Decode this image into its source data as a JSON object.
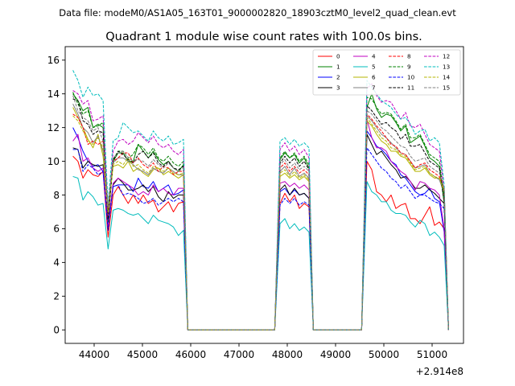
{
  "chart_data": {
    "type": "line",
    "suptitle": "Data file: modeM0/AS1A05_163T01_9000002820_18903cztM0_level2_quad_clean.evt",
    "title": "Quadrant 1 module wise count rates with 100.0s bins.",
    "xlabel": "",
    "ylabel": "",
    "x_offset_label": "+2.914e8",
    "xlim": [
      43400,
      51650
    ],
    "ylim": [
      -0.8,
      16.8
    ],
    "xticks": [
      44000,
      45000,
      46000,
      47000,
      48000,
      49000,
      50000,
      51000
    ],
    "xtick_labels": [
      "44000",
      "45000",
      "46000",
      "47000",
      "48000",
      "49000",
      "50000",
      "51000"
    ],
    "yticks": [
      0,
      2,
      4,
      6,
      8,
      10,
      12,
      14,
      16
    ],
    "ytick_labels": [
      "0",
      "2",
      "4",
      "6",
      "8",
      "10",
      "12",
      "14",
      "16"
    ],
    "grid": false,
    "legend_position": "top-right",
    "legend_columns": 4,
    "orbit_segments": [
      [
        43560,
        45850
      ],
      [
        47850,
        48450
      ],
      [
        49650,
        51250
      ]
    ],
    "bin_width": 100,
    "series": [
      {
        "name": "0",
        "color": "#ff0000",
        "dash": "solid",
        "seg1": [
          10.3,
          10.0,
          9.0,
          9.5,
          9.2,
          9.1,
          9.4,
          5.5,
          8.0,
          8.5,
          8.0,
          7.5,
          8.0,
          7.5,
          8.0,
          7.5,
          7.7,
          7.0,
          7.3,
          7.6,
          7.0,
          7.5,
          7.6
        ],
        "seg2": [
          7.5,
          8.1,
          7.6,
          8.0,
          7.2,
          7.5,
          7.3
        ],
        "seg3": [
          10.0,
          9.5,
          8.2,
          8.0,
          7.6,
          8.0,
          7.2,
          7.4,
          7.5,
          6.6,
          6.6,
          6.3,
          6.8,
          7.3,
          6.2,
          6.4,
          6.0
        ]
      },
      {
        "name": "1",
        "color": "#008000",
        "dash": "solid",
        "seg1": [
          14.0,
          13.6,
          13.0,
          13.2,
          12.0,
          12.2,
          12.0,
          6.5,
          10.0,
          10.5,
          10.5,
          10.0,
          10.0,
          11.0,
          10.6,
          10.2,
          10.6,
          10.1,
          9.8,
          10.0,
          9.6,
          9.4,
          9.8
        ],
        "seg2": [
          10.1,
          10.5,
          10.2,
          10.4,
          9.9,
          10.2,
          9.6
        ],
        "seg3": [
          13.2,
          14.0,
          13.1,
          12.6,
          12.8,
          12.7,
          12.3,
          11.8,
          12.1,
          11.1,
          11.3,
          11.5,
          10.9,
          10.2,
          10.0,
          9.7,
          7.5
        ]
      },
      {
        "name": "2",
        "color": "#0000ff",
        "dash": "solid",
        "seg1": [
          12.0,
          11.4,
          10.6,
          10.0,
          9.7,
          9.8,
          9.4,
          6.2,
          8.5,
          8.6,
          8.6,
          8.6,
          8.2,
          9.0,
          8.5,
          8.4,
          8.8,
          8.2,
          8.4,
          8.6,
          8.0,
          8.1,
          8.3
        ],
        "seg2": [
          8.2,
          8.4,
          8.0,
          8.3,
          8.0,
          8.1,
          7.8
        ],
        "seg3": [
          11.8,
          11.4,
          10.9,
          10.7,
          10.4,
          10.0,
          9.8,
          9.2,
          9.0,
          8.6,
          8.2,
          8.0,
          8.1,
          8.4,
          7.8,
          7.6,
          5.8
        ]
      },
      {
        "name": "3",
        "color": "#000000",
        "dash": "solid",
        "seg1": [
          10.8,
          10.7,
          9.6,
          10.0,
          9.8,
          9.7,
          9.8,
          6.0,
          8.6,
          9.0,
          8.7,
          8.3,
          8.3,
          8.4,
          8.6,
          8.2,
          8.5,
          7.9,
          7.6,
          8.2,
          7.8,
          8.0,
          8.0
        ],
        "seg2": [
          8.3,
          8.6,
          8.0,
          8.4,
          8.0,
          8.1,
          7.8
        ],
        "seg3": [
          11.6,
          11.0,
          10.4,
          10.6,
          10.2,
          9.8,
          9.5,
          9.0,
          9.1,
          8.8,
          8.4,
          8.4,
          8.6,
          8.3,
          8.1,
          7.8,
          7.5
        ]
      },
      {
        "name": "4",
        "color": "#c000c0",
        "dash": "solid",
        "seg1": [
          11.2,
          11.6,
          10.0,
          10.2,
          9.6,
          9.4,
          9.6,
          6.1,
          8.7,
          9.0,
          8.8,
          8.6,
          8.4,
          8.0,
          8.2,
          8.0,
          8.6,
          8.2,
          8.4,
          8.1,
          8.0,
          8.4,
          8.4
        ],
        "seg2": [
          8.7,
          8.8,
          8.5,
          8.7,
          8.4,
          8.6,
          8.3
        ],
        "seg3": [
          12.5,
          11.4,
          10.8,
          10.8,
          10.6,
          10.0,
          9.7,
          9.4,
          9.2,
          8.8,
          8.3,
          8.8,
          8.7,
          8.4,
          8.3,
          8.0,
          6.0
        ]
      },
      {
        "name": "5",
        "color": "#00bcbc",
        "dash": "solid",
        "seg1": [
          9.1,
          9.0,
          7.7,
          8.2,
          7.9,
          7.4,
          7.5,
          4.8,
          7.1,
          7.2,
          7.1,
          6.9,
          6.8,
          6.9,
          6.6,
          6.3,
          6.8,
          6.5,
          6.4,
          6.3,
          6.1,
          5.6,
          5.9
        ],
        "seg2": [
          6.3,
          6.6,
          6.0,
          6.3,
          5.9,
          6.1,
          5.8
        ],
        "seg3": [
          8.8,
          8.2,
          8.0,
          7.6,
          7.6,
          7.1,
          6.9,
          6.9,
          6.8,
          6.4,
          6.1,
          6.5,
          6.3,
          5.6,
          5.8,
          5.5,
          5.0
        ]
      },
      {
        "name": "6",
        "color": "#b5b500",
        "dash": "solid",
        "seg1": [
          13.2,
          12.6,
          12.0,
          11.3,
          10.8,
          11.6,
          10.3,
          7.0,
          9.7,
          9.8,
          9.6,
          10.0,
          9.4,
          9.6,
          9.3,
          9.1,
          9.5,
          9.6,
          9.2,
          9.4,
          9.2,
          9.0,
          9.2
        ],
        "seg2": [
          9.1,
          9.3,
          9.0,
          9.2,
          8.9,
          9.1,
          8.8
        ],
        "seg3": [
          12.4,
          12.1,
          11.6,
          11.2,
          11.0,
          10.6,
          10.6,
          10.3,
          10.2,
          9.8,
          9.4,
          9.4,
          9.6,
          9.2,
          9.0,
          9.0,
          8.3
        ]
      },
      {
        "name": "7",
        "color": "#808080",
        "dash": "solid",
        "seg1": [
          13.4,
          12.8,
          12.0,
          11.7,
          11.1,
          11.5,
          10.6,
          7.2,
          9.9,
          10.2,
          10.2,
          10.0,
          9.8,
          9.5,
          9.4,
          9.2,
          9.6,
          9.4,
          9.3,
          9.6,
          9.4,
          9.2,
          9.2
        ],
        "seg2": [
          9.4,
          9.7,
          9.2,
          9.6,
          9.1,
          9.3,
          9.0
        ],
        "seg3": [
          12.7,
          12.4,
          12.0,
          11.6,
          11.4,
          11.1,
          10.8,
          10.5,
          10.4,
          10.0,
          9.6,
          9.7,
          9.8,
          9.3,
          9.1,
          8.9,
          8.1
        ]
      },
      {
        "name": "8",
        "color": "#ff0000",
        "dash": "dashed",
        "seg1": [
          12.8,
          12.6,
          12.0,
          11.0,
          11.2,
          11.0,
          11.2,
          6.8,
          10.0,
          10.2,
          10.5,
          10.5,
          9.9,
          10.2,
          9.8,
          9.6,
          9.9,
          9.4,
          9.7,
          9.6,
          9.2,
          9.4,
          9.4
        ],
        "seg2": [
          9.6,
          9.9,
          9.4,
          9.7,
          9.3,
          9.5,
          9.2
        ],
        "seg3": [
          12.8,
          12.5,
          12.1,
          11.8,
          11.4,
          11.0,
          10.9,
          10.5,
          10.4,
          10.0,
          9.6,
          9.8,
          9.9,
          9.5,
          9.3,
          9.1,
          8.4
        ]
      },
      {
        "name": "9",
        "color": "#008000",
        "dash": "dashed",
        "seg1": [
          14.1,
          13.4,
          12.8,
          13.0,
          12.0,
          12.1,
          12.3,
          6.4,
          10.1,
          10.6,
          10.6,
          10.2,
          10.4,
          11.0,
          10.8,
          10.4,
          10.8,
          10.2,
          10.0,
          10.3,
          9.9,
          9.7,
          10.0
        ],
        "seg2": [
          10.2,
          10.6,
          10.2,
          10.5,
          10.0,
          10.3,
          9.8
        ],
        "seg3": [
          13.8,
          13.7,
          13.2,
          12.8,
          12.9,
          12.8,
          12.4,
          11.9,
          12.2,
          11.4,
          11.4,
          11.6,
          11.0,
          10.4,
          10.2,
          10.0,
          7.8
        ]
      },
      {
        "name": "10",
        "color": "#0000ff",
        "dash": "dashed",
        "seg1": [
          10.7,
          10.7,
          9.4,
          9.8,
          9.6,
          9.2,
          9.4,
          5.9,
          8.5,
          8.6,
          8.0,
          8.1,
          8.0,
          7.8,
          7.5,
          7.6,
          7.8,
          7.4,
          7.6,
          7.8,
          7.6,
          7.8,
          7.6
        ],
        "seg2": [
          7.4,
          7.8,
          7.5,
          7.8,
          7.4,
          7.6,
          7.4
        ],
        "seg3": [
          10.8,
          10.4,
          10.0,
          9.6,
          9.4,
          9.0,
          8.8,
          8.4,
          8.6,
          8.2,
          7.8,
          8.0,
          8.0,
          7.8,
          7.6,
          7.5,
          7.2
        ]
      },
      {
        "name": "11",
        "color": "#000000",
        "dash": "dashed",
        "seg1": [
          13.7,
          13.6,
          12.4,
          12.2,
          11.6,
          11.8,
          11.7,
          6.6,
          10.0,
          10.6,
          10.4,
          10.1,
          9.9,
          10.4,
          10.6,
          10.2,
          10.5,
          9.9,
          9.7,
          10.0,
          9.6,
          9.5,
          9.7
        ],
        "seg2": [
          9.9,
          10.3,
          9.9,
          10.2,
          9.7,
          10.0,
          9.5
        ],
        "seg3": [
          13.3,
          13.0,
          12.6,
          12.2,
          12.3,
          12.0,
          11.8,
          11.3,
          11.6,
          10.9,
          10.9,
          11.0,
          10.5,
          10.0,
          9.8,
          9.6,
          7.6
        ]
      },
      {
        "name": "12",
        "color": "#c000c0",
        "dash": "dashed",
        "seg1": [
          14.2,
          14.0,
          13.4,
          13.6,
          12.4,
          12.5,
          12.7,
          6.8,
          10.6,
          11.2,
          11.3,
          11.0,
          11.2,
          11.7,
          11.4,
          11.1,
          11.5,
          11.0,
          10.8,
          11.0,
          10.6,
          10.4,
          10.7
        ],
        "seg2": [
          10.7,
          11.1,
          10.6,
          10.9,
          10.4,
          10.7,
          10.2
        ],
        "seg3": [
          14.3,
          14.6,
          13.9,
          13.5,
          13.6,
          13.5,
          13.0,
          12.5,
          12.9,
          12.1,
          12.0,
          12.2,
          11.6,
          11.0,
          10.8,
          10.6,
          8.2
        ]
      },
      {
        "name": "13",
        "color": "#00bcbc",
        "dash": "dashed",
        "seg1": [
          15.4,
          14.8,
          13.8,
          14.4,
          13.9,
          14.0,
          13.6,
          7.4,
          11.2,
          11.4,
          12.3,
          12.0,
          11.7,
          11.8,
          11.5,
          11.2,
          11.8,
          11.4,
          11.2,
          11.5,
          11.0,
          11.1,
          11.3
        ],
        "seg2": [
          11.2,
          11.4,
          11.0,
          11.3,
          10.9,
          11.1,
          10.8
        ],
        "seg3": [
          14.8,
          14.4,
          14.0,
          13.6,
          13.4,
          13.2,
          12.8,
          12.5,
          12.6,
          12.2,
          11.6,
          11.8,
          11.9,
          11.2,
          11.4,
          11.1,
          8.6
        ]
      },
      {
        "name": "14",
        "color": "#b5b500",
        "dash": "dashed",
        "seg1": [
          12.7,
          12.4,
          11.8,
          11.2,
          11.0,
          11.4,
          10.8,
          7.0,
          9.8,
          10.0,
          9.8,
          10.2,
          9.7,
          9.8,
          9.5,
          9.3,
          9.7,
          9.6,
          9.4,
          9.6,
          9.3,
          9.2,
          9.3
        ],
        "seg2": [
          9.3,
          9.5,
          9.1,
          9.4,
          9.0,
          9.2,
          8.9
        ],
        "seg3": [
          12.6,
          12.2,
          11.8,
          11.4,
          11.2,
          10.8,
          10.7,
          10.4,
          10.3,
          9.9,
          9.5,
          9.6,
          9.7,
          9.3,
          9.1,
          9.0,
          8.2
        ]
      },
      {
        "name": "15",
        "color": "#808080",
        "dash": "dashed",
        "seg1": [
          13.9,
          13.0,
          12.6,
          12.4,
          11.8,
          12.0,
          11.2,
          7.3,
          10.2,
          10.5,
          10.6,
          10.2,
          10.0,
          10.1,
          10.0,
          9.7,
          10.1,
          9.8,
          9.6,
          9.9,
          9.6,
          9.4,
          9.6
        ],
        "seg2": [
          9.8,
          10.1,
          9.6,
          9.9,
          9.5,
          9.7,
          9.4
        ],
        "seg3": [
          13.0,
          12.8,
          12.4,
          12.0,
          11.8,
          11.5,
          11.2,
          10.9,
          10.8,
          10.3,
          10.0,
          10.1,
          10.2,
          9.7,
          9.5,
          9.3,
          8.4
        ]
      }
    ]
  }
}
